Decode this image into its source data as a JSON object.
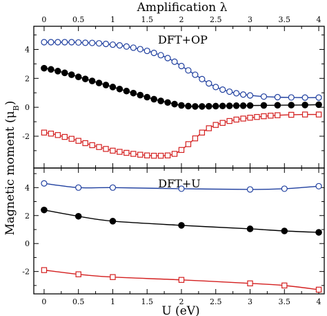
{
  "chart_data": {
    "type": "line",
    "top_axis": {
      "label": "Amplification λ",
      "ticks": [
        "0",
        "0.5",
        "1",
        "1.5",
        "2",
        "2.5",
        "3",
        "3.5",
        "4"
      ],
      "xlim": [
        -0.15,
        4.08
      ]
    },
    "bottom_axis": {
      "label": "U (eV)",
      "ticks": [
        "0",
        "0.5",
        "1",
        "1.5",
        "2",
        "2.5",
        "3",
        "3.5",
        "4"
      ],
      "xlim": [
        -0.15,
        4.08
      ]
    },
    "ylabel": "Magnetic moment (μ",
    "ylabel_sub": "B",
    "ylabel_close": ")",
    "panels": [
      {
        "label": "DFT+OP",
        "ylim": [
          -4.2,
          5.6
        ],
        "yticks": [
          "-2",
          "0",
          "2",
          "4"
        ],
        "series": [
          {
            "color": "#1f3f9f",
            "marker": "open-circle",
            "x": [
              0,
              0.1,
              0.2,
              0.3,
              0.4,
              0.5,
              0.6,
              0.7,
              0.8,
              0.9,
              1.0,
              1.1,
              1.2,
              1.3,
              1.4,
              1.5,
              1.6,
              1.7,
              1.8,
              1.9,
              2.0,
              2.1,
              2.2,
              2.3,
              2.4,
              2.5,
              2.6,
              2.7,
              2.8,
              2.9,
              3.0,
              3.2,
              3.4,
              3.6,
              3.8,
              4.0
            ],
            "values": [
              4.5,
              4.5,
              4.5,
              4.5,
              4.5,
              4.48,
              4.46,
              4.45,
              4.42,
              4.38,
              4.33,
              4.28,
              4.2,
              4.12,
              4.02,
              3.9,
              3.76,
              3.6,
              3.4,
              3.15,
              2.85,
              2.55,
              2.25,
              1.95,
              1.65,
              1.4,
              1.22,
              1.08,
              0.97,
              0.88,
              0.82,
              0.74,
              0.7,
              0.68,
              0.67,
              0.67
            ]
          },
          {
            "color": "#000000",
            "marker": "filled-circle",
            "x": [
              0,
              0.1,
              0.2,
              0.3,
              0.4,
              0.5,
              0.6,
              0.7,
              0.8,
              0.9,
              1.0,
              1.1,
              1.2,
              1.3,
              1.4,
              1.5,
              1.6,
              1.7,
              1.8,
              1.9,
              2.0,
              2.1,
              2.2,
              2.3,
              2.4,
              2.5,
              2.6,
              2.7,
              2.8,
              2.9,
              3.0,
              3.2,
              3.4,
              3.6,
              3.8,
              4.0
            ],
            "values": [
              2.7,
              2.62,
              2.5,
              2.38,
              2.25,
              2.1,
              1.96,
              1.82,
              1.68,
              1.54,
              1.4,
              1.26,
              1.12,
              0.98,
              0.84,
              0.7,
              0.56,
              0.44,
              0.33,
              0.22,
              0.13,
              0.08,
              0.06,
              0.06,
              0.07,
              0.08,
              0.09,
              0.1,
              0.11,
              0.11,
              0.12,
              0.13,
              0.14,
              0.15,
              0.16,
              0.18
            ]
          },
          {
            "color": "#d42020",
            "marker": "open-square",
            "x": [
              0,
              0.1,
              0.2,
              0.3,
              0.4,
              0.5,
              0.6,
              0.7,
              0.8,
              0.9,
              1.0,
              1.1,
              1.2,
              1.3,
              1.4,
              1.5,
              1.6,
              1.7,
              1.8,
              1.9,
              2.0,
              2.1,
              2.2,
              2.3,
              2.4,
              2.5,
              2.6,
              2.7,
              2.8,
              2.9,
              3.0,
              3.1,
              3.2,
              3.3,
              3.4,
              3.6,
              3.8,
              4.0
            ],
            "values": [
              -1.75,
              -1.82,
              -1.92,
              -2.05,
              -2.18,
              -2.32,
              -2.48,
              -2.62,
              -2.75,
              -2.88,
              -3.0,
              -3.08,
              -3.15,
              -3.22,
              -3.28,
              -3.33,
              -3.35,
              -3.35,
              -3.33,
              -3.22,
              -2.95,
              -2.55,
              -2.15,
              -1.75,
              -1.45,
              -1.22,
              -1.08,
              -0.95,
              -0.85,
              -0.78,
              -0.72,
              -0.67,
              -0.62,
              -0.58,
              -0.55,
              -0.52,
              -0.5,
              -0.5
            ]
          }
        ]
      },
      {
        "label": "DFT+U",
        "ylim": [
          -3.6,
          5.4
        ],
        "yticks": [
          "-2",
          "0",
          "2",
          "4"
        ],
        "series": [
          {
            "color": "#1f3f9f",
            "marker": "open-circle",
            "x": [
              0,
              0.5,
              1,
              2,
              3,
              3.5,
              4
            ],
            "values": [
              4.3,
              4.0,
              4.0,
              3.92,
              3.87,
              3.92,
              4.1
            ]
          },
          {
            "color": "#000000",
            "marker": "filled-circle",
            "x": [
              0,
              0.5,
              1,
              2,
              3,
              3.5,
              4
            ],
            "values": [
              2.4,
              1.95,
              1.6,
              1.3,
              1.05,
              0.9,
              0.8
            ]
          },
          {
            "color": "#d42020",
            "marker": "open-square",
            "x": [
              0,
              0.5,
              1,
              2,
              3,
              3.5,
              4
            ],
            "values": [
              -1.9,
              -2.2,
              -2.4,
              -2.6,
              -2.85,
              -3.0,
              -3.3
            ]
          }
        ]
      }
    ]
  }
}
